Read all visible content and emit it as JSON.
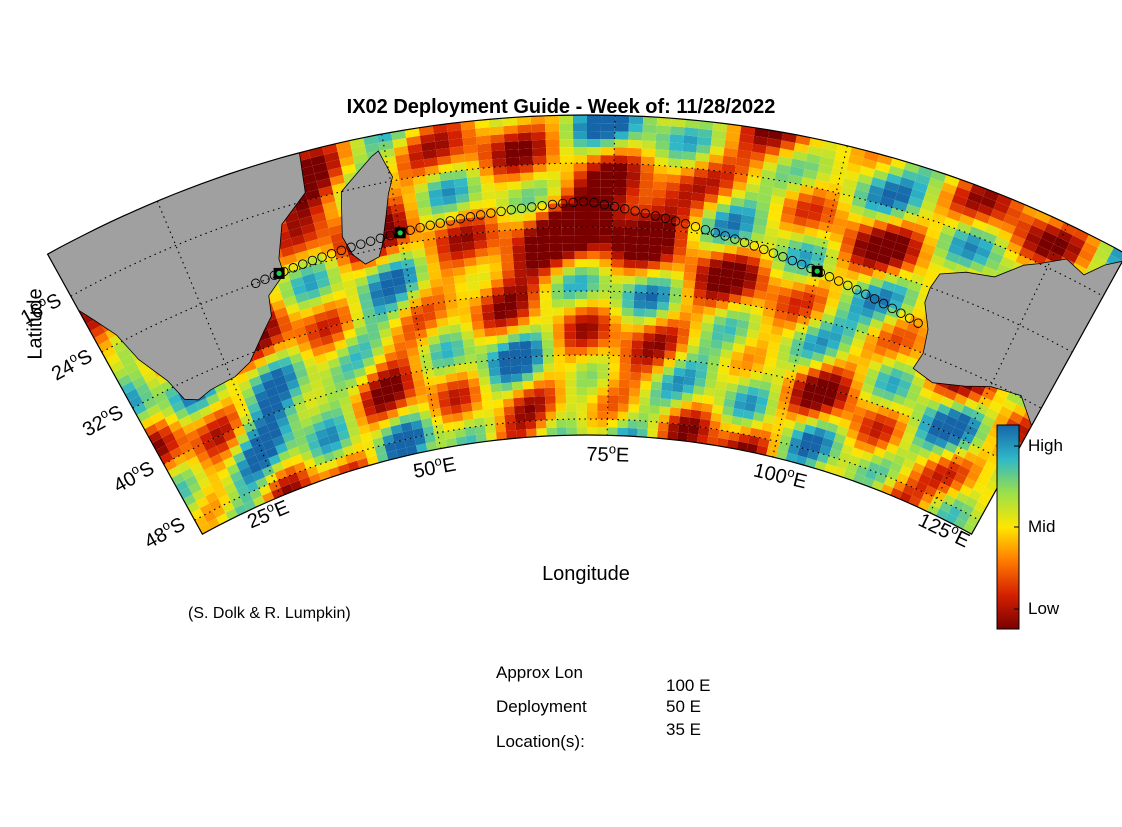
{
  "title": "IX02 Deployment Guide - Week of: 11/28/2022",
  "ylabel": "Latitude",
  "xlabel": "Longitude",
  "credit": "(S. Dolk & R. Lumpkin)",
  "lat_ticks": [
    {
      "deg": "16",
      "hemi": "S"
    },
    {
      "deg": "24",
      "hemi": "S"
    },
    {
      "deg": "32",
      "hemi": "S"
    },
    {
      "deg": "40",
      "hemi": "S"
    },
    {
      "deg": "48",
      "hemi": "S"
    }
  ],
  "lon_ticks": [
    {
      "deg": "25",
      "hemi": "E"
    },
    {
      "deg": "50",
      "hemi": "E"
    },
    {
      "deg": "75",
      "hemi": "E"
    },
    {
      "deg": "100",
      "hemi": "E"
    },
    {
      "deg": "125",
      "hemi": "E"
    }
  ],
  "colorbar": {
    "labels": {
      "high": "High",
      "mid": "Mid",
      "low": "Low"
    },
    "colors": [
      "#7a0000",
      "#d42000",
      "#ff7a00",
      "#ffe600",
      "#9be04a",
      "#2fb8c8",
      "#1565a8"
    ]
  },
  "map": {
    "land_color": "#a0a0a0",
    "dot_color": "#19d24a",
    "extent": {
      "lon": [
        12,
        132
      ],
      "lat": [
        -50,
        -10
      ]
    }
  },
  "deployment_info": {
    "label_line1": "Approx Lon",
    "label_line2": "Deployment",
    "label_line3": "Location(s):",
    "values": [
      "100 E",
      "50 E",
      "35 E"
    ]
  }
}
